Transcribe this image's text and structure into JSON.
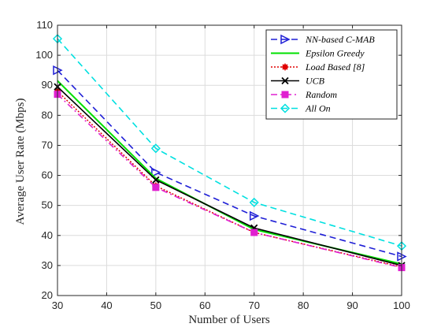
{
  "chart_data": {
    "type": "line",
    "xlabel": "Number of Users",
    "ylabel": "Average User Rate (Mbps)",
    "xlim": [
      30,
      100
    ],
    "ylim": [
      20,
      110
    ],
    "xticks": [
      30,
      40,
      50,
      60,
      70,
      80,
      90,
      100
    ],
    "yticks": [
      20,
      30,
      40,
      50,
      60,
      70,
      80,
      90,
      100,
      110
    ],
    "grid": true,
    "legend_position": "top-right",
    "x": [
      30,
      50,
      70,
      100
    ],
    "series": [
      {
        "name": "NN-based C-MAB",
        "values": [
          95,
          61,
          46.5,
          33
        ],
        "color": "#1f1fd6",
        "dash": "8,5",
        "marker": "triangle-right",
        "width": 1.6
      },
      {
        "name": "Epsilon Greedy",
        "values": [
          91.5,
          59,
          42,
          30.5
        ],
        "color": "#00e000",
        "dash": "",
        "marker": "none",
        "width": 2.0
      },
      {
        "name": "Load Based [8]",
        "values": [
          88,
          56.5,
          41,
          29.5
        ],
        "color": "#e00000",
        "dash": "2,2",
        "marker": "asterisk",
        "width": 1.5
      },
      {
        "name": "UCB",
        "values": [
          89.5,
          58.5,
          42.5,
          30
        ],
        "color": "#000000",
        "dash": "",
        "marker": "x",
        "width": 1.6
      },
      {
        "name": "Random",
        "values": [
          87,
          56,
          41,
          29.3
        ],
        "color": "#e020d0",
        "dash": "8,4,2,4",
        "marker": "square",
        "width": 1.6
      },
      {
        "name": "All On",
        "values": [
          105.5,
          69,
          51,
          36.5
        ],
        "color": "#00e0e0",
        "dash": "8,5",
        "marker": "diamond",
        "width": 1.6
      }
    ]
  }
}
